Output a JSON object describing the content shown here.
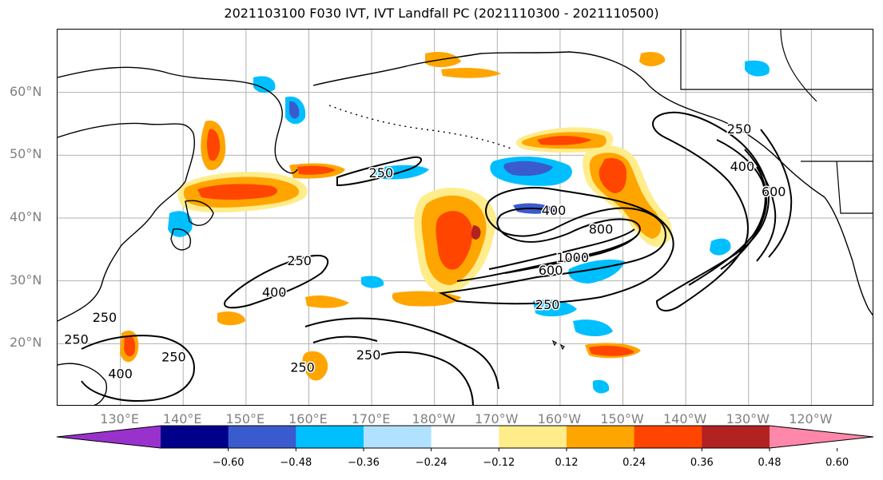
{
  "title": "2021103100 F030 IVT, IVT Landfall PC (2021110300 - 2021110500)",
  "map": {
    "lat_labels": [
      {
        "text": "60°N",
        "lat": 60
      },
      {
        "text": "50°N",
        "lat": 50
      },
      {
        "text": "40°N",
        "lat": 40
      },
      {
        "text": "30°N",
        "lat": 30
      },
      {
        "text": "20°N",
        "lat": 20
      }
    ],
    "lon_labels": [
      {
        "text": "130°E",
        "lon": 130
      },
      {
        "text": "140°E",
        "lon": 140
      },
      {
        "text": "150°E",
        "lon": 150
      },
      {
        "text": "160°E",
        "lon": 160
      },
      {
        "text": "170°E",
        "lon": 170
      },
      {
        "text": "180°W",
        "lon": 180
      },
      {
        "text": "170°W",
        "lon": 190
      },
      {
        "text": "160°W",
        "lon": 200
      },
      {
        "text": "150°W",
        "lon": 210
      },
      {
        "text": "140°W",
        "lon": 220
      },
      {
        "text": "130°W",
        "lon": 230
      },
      {
        "text": "120°W",
        "lon": 240
      }
    ],
    "extent": {
      "lon_min": 120,
      "lon_max": 250,
      "lat_min": 10,
      "lat_max": 70
    },
    "contour_labels": [
      {
        "text": "250",
        "lon": 171.5,
        "lat": 46.5
      },
      {
        "text": "250",
        "lon": 158.5,
        "lat": 32.5
      },
      {
        "text": "400",
        "lon": 154.5,
        "lat": 27.5
      },
      {
        "text": "250",
        "lon": 127.5,
        "lat": 23.5
      },
      {
        "text": "250",
        "lon": 123,
        "lat": 20
      },
      {
        "text": "250",
        "lon": 138.5,
        "lat": 17.2
      },
      {
        "text": "400",
        "lon": 130,
        "lat": 14.5
      },
      {
        "text": "250",
        "lon": 159,
        "lat": 15.5
      },
      {
        "text": "250",
        "lon": 169.5,
        "lat": 17.5
      },
      {
        "text": "400",
        "lon": 199,
        "lat": 40.5
      },
      {
        "text": "800",
        "lon": 206.5,
        "lat": 37.5
      },
      {
        "text": "1000",
        "lon": 202,
        "lat": 33
      },
      {
        "text": "600",
        "lon": 198.5,
        "lat": 31
      },
      {
        "text": "250",
        "lon": 198,
        "lat": 25.5
      },
      {
        "text": "250",
        "lon": 228.5,
        "lat": 53.5
      },
      {
        "text": "400",
        "lon": 229,
        "lat": 47.5
      },
      {
        "text": "600",
        "lon": 234,
        "lat": 43.5
      }
    ]
  },
  "colorbar": {
    "colors": [
      "#9932cc",
      "#00008b",
      "#3a5bcd",
      "#00bfff",
      "#b0e2ff",
      "#ffffff",
      "#ffec8b",
      "#ffa500",
      "#ff4500",
      "#b22222",
      "#ff88aa"
    ],
    "tick_labels": [
      "−0.60",
      "−0.48",
      "−0.36",
      "−0.24",
      "−0.12",
      "0.12",
      "0.24",
      "0.36",
      "0.48",
      "0.60"
    ]
  }
}
